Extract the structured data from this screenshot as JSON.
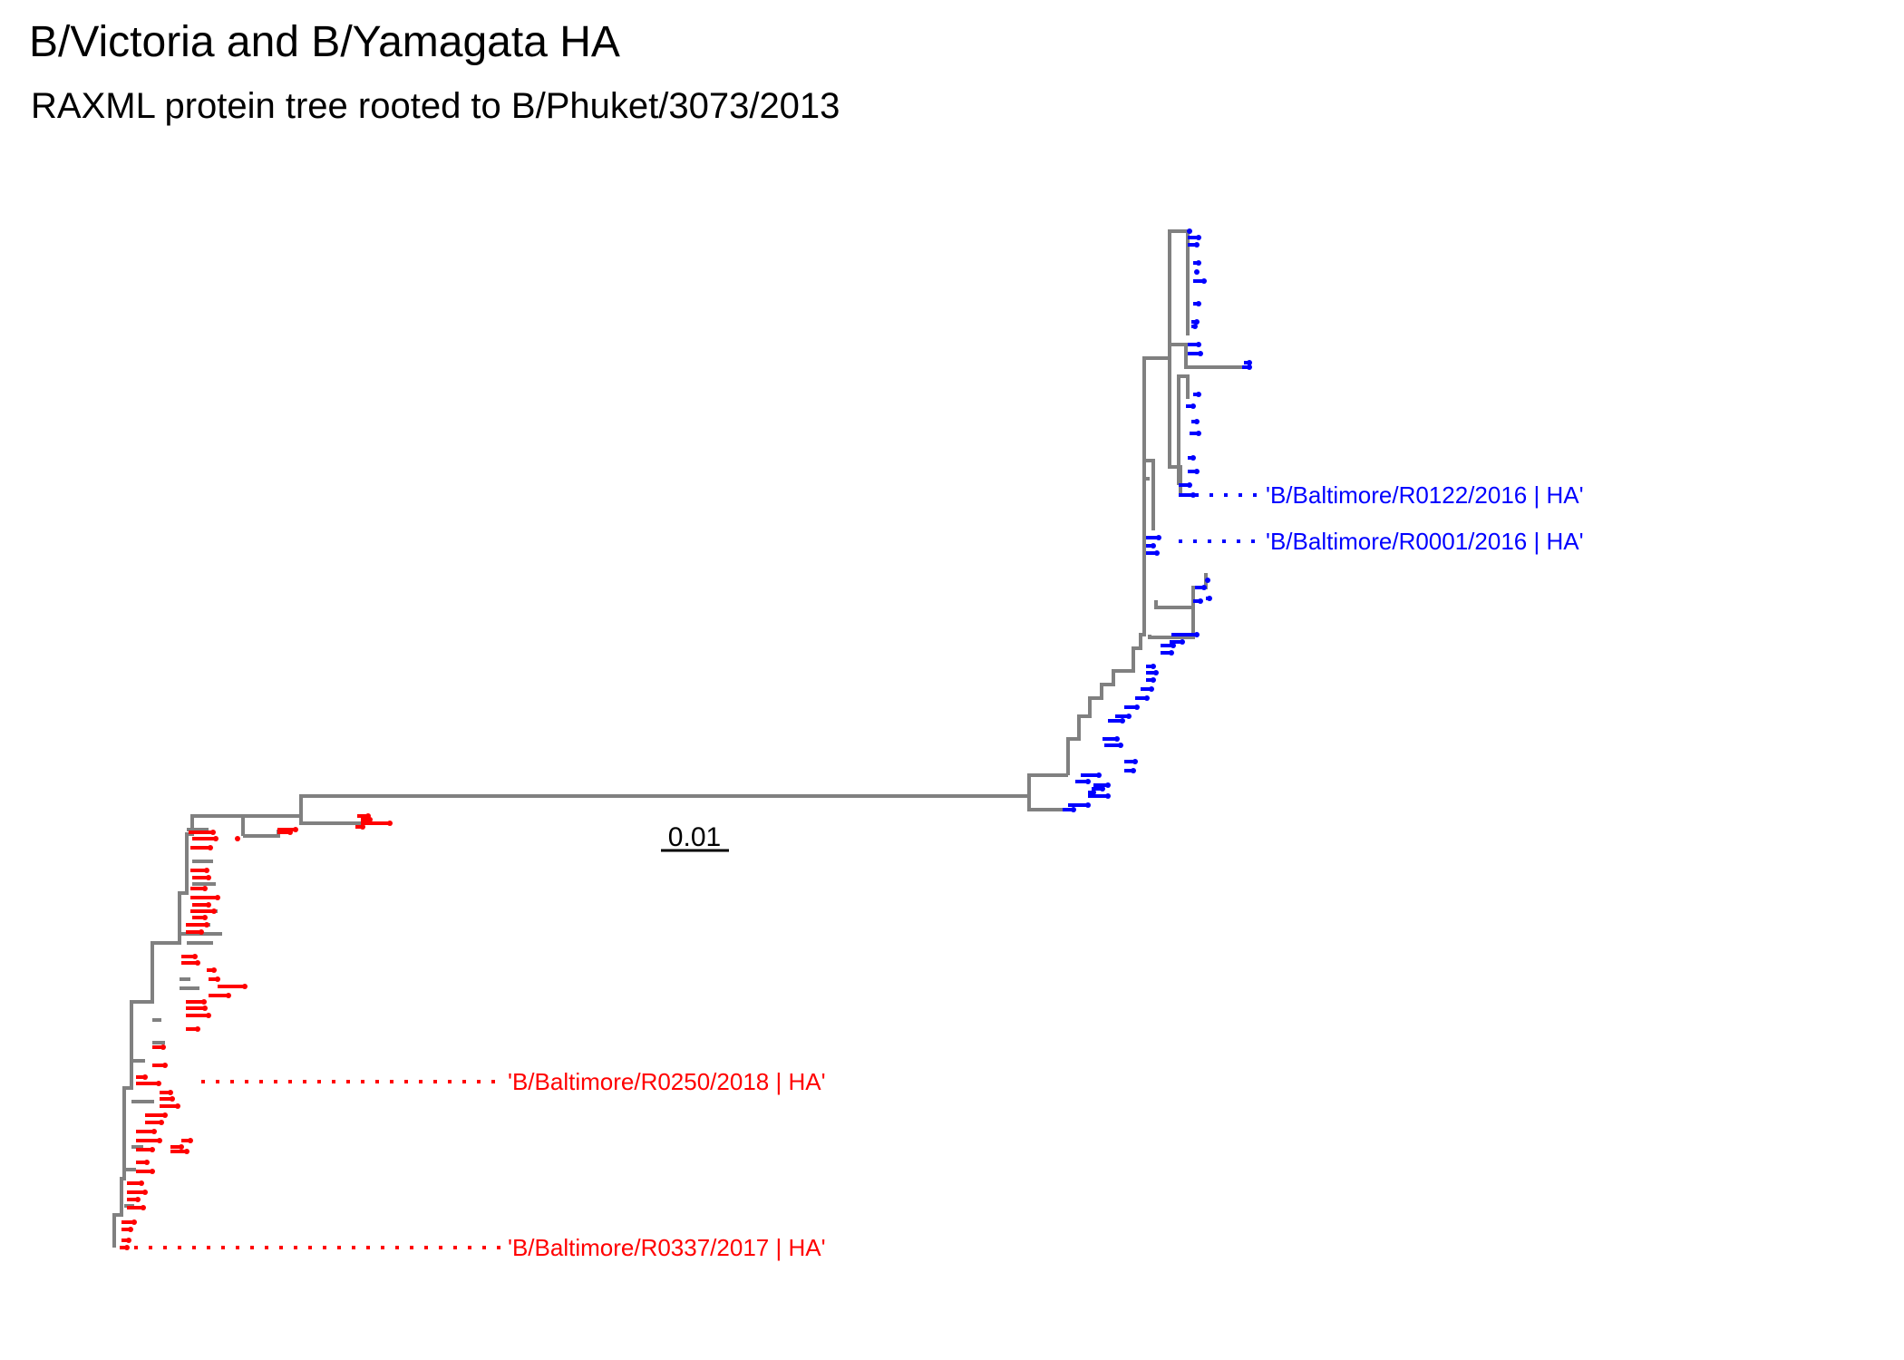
{
  "title": "B/Victoria and B/Yamagata HA",
  "subtitle": "RAXML protein tree rooted to B/Phuket/3073/2013",
  "scale_bar": {
    "label": "0.01"
  },
  "colors": {
    "branch": "#808080",
    "yamagata_clade": "#0000ff",
    "victoria_clade": "#ff0000",
    "text": "#000000"
  },
  "highlighted_tips": [
    {
      "label": "'B/Baltimore/R0122/2016 | HA'",
      "clade": "yamagata"
    },
    {
      "label": "'B/Baltimore/R0001/2016 | HA'",
      "clade": "yamagata"
    },
    {
      "label": "'B/Baltimore/R0250/2018 | HA'",
      "clade": "victoria"
    },
    {
      "label": "'B/Baltimore/R0337/2017 | HA'",
      "clade": "victoria"
    }
  ]
}
